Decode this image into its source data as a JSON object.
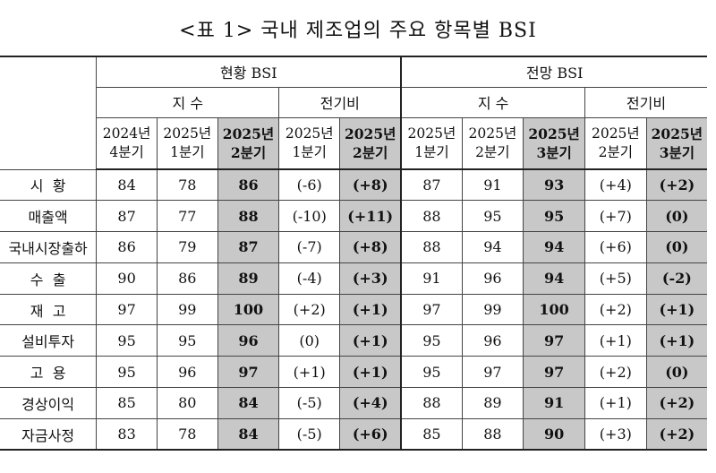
{
  "title": "<표 1> 국내 제조업의 주요 항목별 BSI",
  "groups": {
    "current": "현황 BSI",
    "outlook": "전망 BSI"
  },
  "subgroups": {
    "index": "지 수",
    "change": "전기비"
  },
  "periods": {
    "c1": "2024년\n4분기",
    "c2": "2025년\n1분기",
    "c3": "2025년\n2분기",
    "c4": "2025년\n1분기",
    "c5": "2025년\n2분기",
    "o1": "2025년\n1분기",
    "o2": "2025년\n2분기",
    "o3": "2025년\n3분기",
    "o4": "2025년\n2분기",
    "o5": "2025년\n3분기"
  },
  "rows": [
    {
      "label": "시  황",
      "v": [
        "84",
        "78",
        "86",
        "(-6)",
        "(+8)",
        "87",
        "91",
        "93",
        "(+4)",
        "(+2)"
      ]
    },
    {
      "label": "매출액",
      "v": [
        "87",
        "77",
        "88",
        "(-10)",
        "(+11)",
        "88",
        "95",
        "95",
        "(+7)",
        "(0)"
      ]
    },
    {
      "label": "국내시장출하",
      "v": [
        "86",
        "79",
        "87",
        "(-7)",
        "(+8)",
        "88",
        "94",
        "94",
        "(+6)",
        "(0)"
      ]
    },
    {
      "label": "수  출",
      "v": [
        "90",
        "86",
        "89",
        "(-4)",
        "(+3)",
        "91",
        "96",
        "94",
        "(+5)",
        "(-2)"
      ]
    },
    {
      "label": "재  고",
      "v": [
        "97",
        "99",
        "100",
        "(+2)",
        "(+1)",
        "97",
        "99",
        "100",
        "(+2)",
        "(+1)"
      ]
    },
    {
      "label": "설비투자",
      "v": [
        "95",
        "95",
        "96",
        "(0)",
        "(+1)",
        "95",
        "96",
        "97",
        "(+1)",
        "(+1)"
      ]
    },
    {
      "label": "고  용",
      "v": [
        "95",
        "96",
        "97",
        "(+1)",
        "(+1)",
        "95",
        "97",
        "97",
        "(+2)",
        "(0)"
      ]
    },
    {
      "label": "경상이익",
      "v": [
        "85",
        "80",
        "84",
        "(-5)",
        "(+4)",
        "88",
        "89",
        "91",
        "(+1)",
        "(+2)"
      ]
    },
    {
      "label": "자금사정",
      "v": [
        "83",
        "78",
        "84",
        "(-5)",
        "(+6)",
        "85",
        "88",
        "90",
        "(+3)",
        "(+2)"
      ]
    }
  ],
  "colors": {
    "highlight": "#c8c8c8",
    "border": "#444444"
  }
}
